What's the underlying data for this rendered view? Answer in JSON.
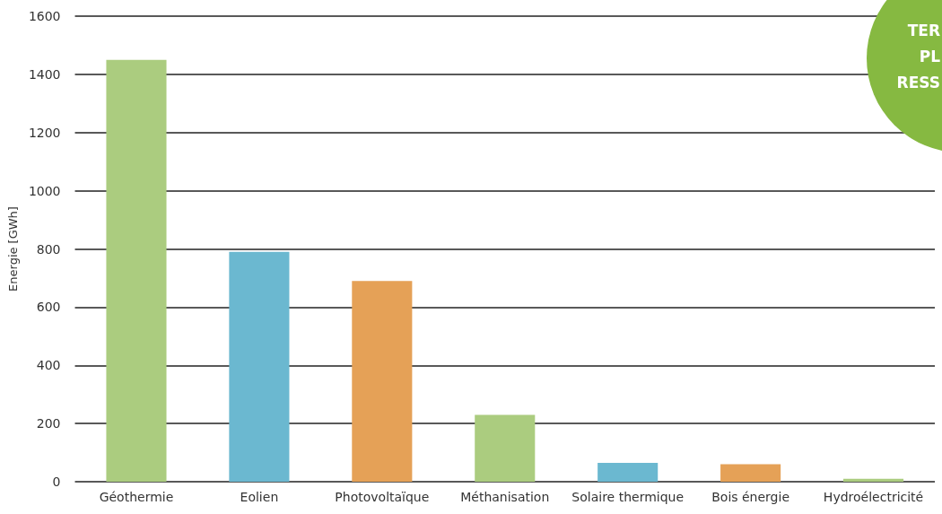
{
  "chart_data": {
    "type": "bar",
    "ylabel": "Energie [GWh]",
    "categories": [
      "Géothermie",
      "Eolien",
      "Photovoltaïque",
      "Méthanisation",
      "Solaire thermique",
      "Bois énergie",
      "Hydroélectricité"
    ],
    "values": [
      1450,
      790,
      690,
      230,
      65,
      60,
      10
    ],
    "colors": [
      "#abcc7f",
      "#6bb8d0",
      "#e5a157",
      "#abcc7f",
      "#6bb8d0",
      "#e5a157",
      "#abcc7f"
    ],
    "ylim": [
      0,
      1600
    ],
    "yticks": [
      0,
      200,
      400,
      600,
      800,
      1000,
      1200,
      1400,
      1600
    ],
    "grid": "y",
    "annotations": [
      "TER",
      "PL",
      "RESS"
    ]
  }
}
